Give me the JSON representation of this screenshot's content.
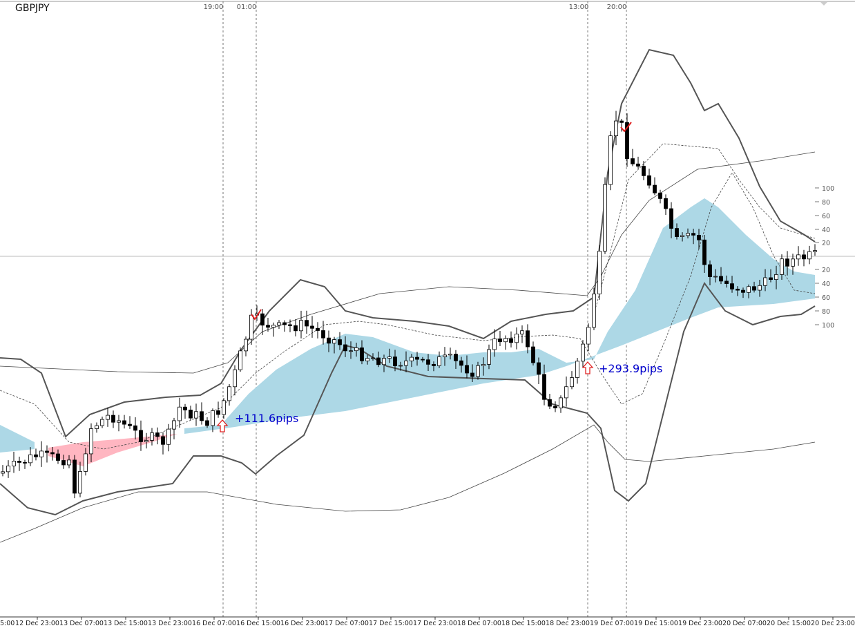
{
  "symbol": "GBPJPY",
  "top_time_labels": [
    "19:00",
    "01:00",
    "13:00",
    "20:00"
  ],
  "annotations": [
    "+111.6pips",
    "+293.9pips"
  ],
  "right_scale": [
    "100",
    "80",
    "60",
    "40",
    "20",
    "20",
    "40",
    "60",
    "80",
    "100"
  ],
  "x_labels": [
    "5:00",
    "12 Dec 23:00",
    "13 Dec 07:00",
    "13 Dec 15:00",
    "13 Dec 23:00",
    "16 Dec 07:00",
    "16 Dec 15:00",
    "16 Dec 23:00",
    "17 Dec 07:00",
    "17 Dec 15:00",
    "17 Dec 23:00",
    "18 Dec 07:00",
    "18 Dec 15:00",
    "18 Dec 23:00",
    "19 Dec 07:00",
    "19 Dec 15:00",
    "19 Dec 23:00",
    "20 Dec 07:00",
    "20 Dec 15:00",
    "20 Dec 23:00"
  ]
}
